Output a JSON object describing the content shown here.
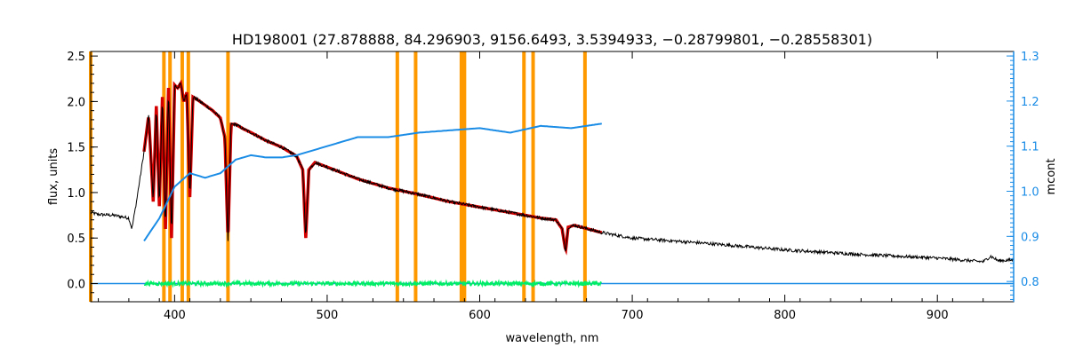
{
  "chart_data": {
    "type": "line",
    "title": "HD198001   (27.878888, 84.296903, 9156.6493, 3.5394933, −0.28799801, −0.28558301)",
    "xlabel": "wavelength, nm",
    "ylabel": "flux, units",
    "ylabel_right": "mcont",
    "xlim": [
      345,
      950
    ],
    "ylim": [
      -0.2,
      2.55
    ],
    "ylim_right": [
      0.755,
      1.31
    ],
    "x_ticks": [
      400,
      500,
      600,
      700,
      800,
      900
    ],
    "y_ticks": [
      0.0,
      0.5,
      1.0,
      1.5,
      2.0,
      2.5
    ],
    "y_tick_labels": [
      "0.0",
      "0.5",
      "1.0",
      "1.5",
      "2.0",
      "2.5"
    ],
    "y_right_ticks": [
      0.8,
      0.9,
      1.0,
      1.1,
      1.2,
      1.3
    ],
    "y_right_tick_labels": [
      "0.8",
      "0.9",
      "1.0",
      "1.1",
      "1.2",
      "1.3"
    ],
    "colors": {
      "observed": "#000000",
      "model": "#d40000",
      "residual": "#00ee66",
      "continuum": "#1a8ce6",
      "zero_line": "#1a8ce6",
      "masked_regions": "#ff9900",
      "right_axis": "#1a8ce6"
    },
    "masked_wavelengths": [
      345,
      393,
      397,
      405,
      409,
      435,
      546,
      558,
      588,
      590,
      629,
      635,
      669
    ],
    "series": [
      {
        "id": "observed",
        "x": [
          345,
          350,
          360,
          370,
          372,
          375,
          380,
          383,
          386,
          388,
          390,
          392,
          394,
          396,
          398,
          400,
          402,
          404,
          406,
          408,
          410,
          412,
          415,
          420,
          425,
          430,
          433,
          435,
          437,
          440,
          445,
          450,
          460,
          470,
          480,
          484,
          486,
          488,
          492,
          500,
          520,
          540,
          560,
          580,
          600,
          620,
          640,
          650,
          654,
          656.3,
          658,
          662,
          680,
          700,
          750,
          800,
          850,
          900,
          930,
          935,
          940,
          950
        ],
        "y": [
          0.78,
          0.76,
          0.75,
          0.72,
          0.6,
          0.9,
          1.45,
          1.85,
          0.9,
          1.95,
          0.85,
          2.05,
          0.6,
          2.15,
          0.5,
          2.18,
          2.15,
          2.2,
          2.0,
          2.1,
          0.95,
          2.05,
          2.02,
          1.96,
          1.9,
          1.82,
          1.6,
          0.45,
          1.75,
          1.75,
          1.7,
          1.66,
          1.57,
          1.5,
          1.4,
          1.25,
          0.5,
          1.25,
          1.33,
          1.28,
          1.15,
          1.05,
          0.98,
          0.9,
          0.84,
          0.78,
          0.72,
          0.7,
          0.6,
          0.36,
          0.62,
          0.64,
          0.56,
          0.5,
          0.44,
          0.37,
          0.32,
          0.28,
          0.24,
          0.3,
          0.25,
          0.26
        ]
      },
      {
        "id": "model",
        "x": [
          380,
          383,
          386,
          388,
          390,
          392,
          394,
          396,
          398,
          400,
          402,
          404,
          406,
          408,
          410,
          412,
          415,
          420,
          425,
          430,
          433,
          435,
          437,
          440,
          445,
          450,
          460,
          470,
          480,
          484,
          486,
          488,
          492,
          500,
          520,
          540,
          560,
          580,
          600,
          620,
          640,
          650,
          654,
          656.3,
          658,
          662,
          680
        ],
        "y": [
          1.45,
          1.85,
          0.9,
          1.95,
          0.85,
          2.05,
          0.6,
          2.15,
          0.5,
          2.18,
          2.15,
          2.2,
          2.0,
          2.1,
          0.95,
          2.05,
          2.02,
          1.96,
          1.9,
          1.82,
          1.6,
          0.45,
          1.75,
          1.75,
          1.7,
          1.66,
          1.57,
          1.5,
          1.4,
          1.25,
          0.5,
          1.25,
          1.33,
          1.28,
          1.15,
          1.05,
          0.98,
          0.9,
          0.84,
          0.78,
          0.72,
          0.7,
          0.6,
          0.36,
          0.62,
          0.64,
          0.56
        ]
      },
      {
        "id": "residual",
        "x": [
          380,
          680
        ],
        "y": [
          0.0,
          0.0
        ]
      },
      {
        "id": "continuum",
        "axis": "right",
        "x": [
          380,
          390,
          400,
          410,
          420,
          430,
          440,
          450,
          460,
          470,
          480,
          490,
          500,
          520,
          540,
          560,
          580,
          600,
          620,
          640,
          660,
          680
        ],
        "y": [
          0.89,
          0.94,
          1.01,
          1.04,
          1.03,
          1.04,
          1.07,
          1.08,
          1.075,
          1.075,
          1.08,
          1.09,
          1.1,
          1.12,
          1.12,
          1.13,
          1.135,
          1.14,
          1.13,
          1.145,
          1.14,
          1.15
        ]
      }
    ]
  }
}
